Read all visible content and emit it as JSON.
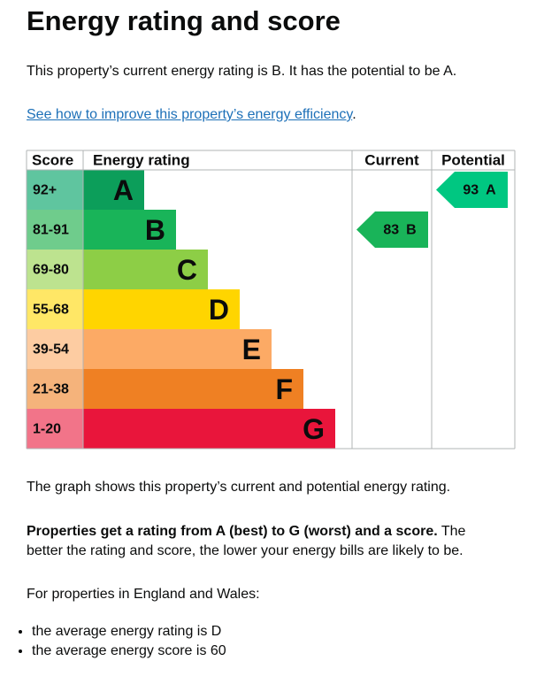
{
  "title": "Energy rating and score",
  "intro": "This property’s current energy rating is B. It has the potential to be A.",
  "link": {
    "text": "See how to improve this property’s energy efficiency",
    "after": "."
  },
  "table": {
    "headers": [
      "Score",
      "Energy rating",
      "Current",
      "Potential"
    ],
    "rows": [
      {
        "score": "92+",
        "band": "A",
        "color": "#0c9e5a",
        "score_color": "#5fc59f"
      },
      {
        "score": "81-91",
        "band": "B",
        "color": "#19b459",
        "score_color": "#6fcc8c"
      },
      {
        "score": "69-80",
        "band": "C",
        "color": "#8dce46",
        "score_color": "#bde38f"
      },
      {
        "score": "55-68",
        "band": "D",
        "color": "#ffd500",
        "score_color": "#ffe766"
      },
      {
        "score": "39-54",
        "band": "E",
        "color": "#fcaa65",
        "score_color": "#fdcca2"
      },
      {
        "score": "21-38",
        "band": "F",
        "color": "#ef8023",
        "score_color": "#f5b37b"
      },
      {
        "score": "1-20",
        "band": "G",
        "color": "#e9153b",
        "score_color": "#f27489"
      }
    ],
    "current": {
      "score": 83,
      "band": "B",
      "color": "#19b459"
    },
    "potential": {
      "score": 93,
      "band": "A",
      "color": "#00c781"
    }
  },
  "graph_note": "The graph shows this property’s current and potential energy rating.",
  "explanation": {
    "bold": "Properties get a rating from A (best) to G (worst) and a score.",
    "rest": " The better the rating and score, the lower your energy bills are likely to be."
  },
  "average_intro": "For properties in England and Wales:",
  "averages": [
    "the average energy rating is D",
    "the average energy score is 60"
  ]
}
